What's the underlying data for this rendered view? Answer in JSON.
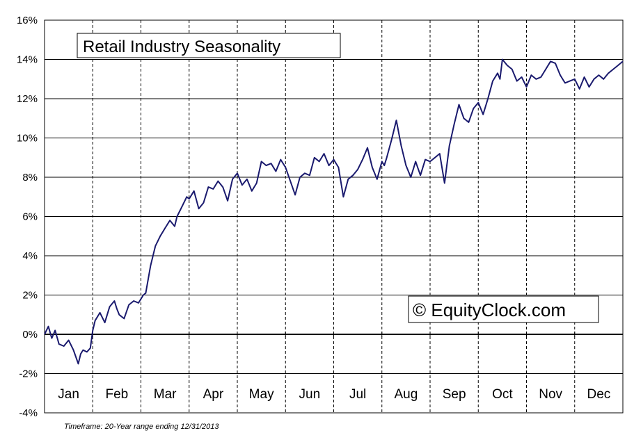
{
  "chart_data": {
    "type": "line",
    "title": "Retail Industry Seasonality",
    "watermark": "© EquityClock.com",
    "footnote": "Timeframe: 20-Year range ending 12/31/2013",
    "ylim": [
      -4,
      16
    ],
    "yticks": [
      "16%",
      "14%",
      "12%",
      "10%",
      "8%",
      "6%",
      "4%",
      "2%",
      "0%",
      "-2%",
      "-4%"
    ],
    "months": [
      "Jan",
      "Feb",
      "Mar",
      "Apr",
      "May",
      "Jun",
      "Jul",
      "Aug",
      "Sep",
      "Oct",
      "Nov",
      "Dec"
    ],
    "grid": true,
    "line_color": "#1a1a6e",
    "series": [
      {
        "x": [
          0,
          0.08,
          0.15,
          0.22,
          0.3,
          0.4,
          0.5,
          0.6,
          0.7,
          0.75,
          0.8,
          0.88,
          0.95,
          1.0,
          1.05,
          1.15,
          1.25,
          1.35,
          1.45,
          1.5,
          1.55,
          1.65,
          1.75,
          1.85,
          1.95,
          2.05,
          2.1,
          2.2,
          2.3,
          2.4,
          2.5,
          2.6,
          2.7,
          2.75,
          2.85,
          2.95,
          3.0,
          3.1,
          3.2,
          3.3,
          3.4,
          3.5,
          3.6,
          3.7,
          3.8,
          3.9,
          4.0,
          4.1,
          4.2,
          4.3,
          4.4,
          4.5,
          4.6,
          4.7,
          4.8,
          4.9,
          5.0,
          5.1,
          5.2,
          5.3,
          5.4,
          5.5,
          5.6,
          5.7,
          5.8,
          5.9,
          6.0,
          6.1,
          6.2,
          6.3,
          6.4,
          6.5,
          6.6,
          6.7,
          6.8,
          6.9,
          7.0,
          7.05,
          7.1,
          7.2,
          7.3,
          7.4,
          7.5,
          7.6,
          7.7,
          7.8,
          7.9,
          8.0,
          8.1,
          8.2,
          8.3,
          8.4,
          8.5,
          8.6,
          8.7,
          8.8,
          8.9,
          9.0,
          9.1,
          9.2,
          9.3,
          9.4,
          9.45,
          9.5,
          9.6,
          9.7,
          9.8,
          9.9,
          10.0,
          10.1,
          10.2,
          10.3,
          10.4,
          10.5,
          10.6,
          10.7,
          10.8,
          10.9,
          11.0,
          11.1,
          11.2,
          11.3,
          11.4,
          11.5,
          11.6,
          11.7,
          11.8,
          11.9,
          12.0
        ],
        "y": [
          0.0,
          0.4,
          -0.2,
          0.2,
          -0.5,
          -0.6,
          -0.3,
          -0.8,
          -1.5,
          -1.0,
          -0.8,
          -0.9,
          -0.7,
          0.2,
          0.7,
          1.1,
          0.6,
          1.4,
          1.7,
          1.3,
          1.0,
          0.8,
          1.5,
          1.7,
          1.6,
          2.0,
          2.1,
          3.5,
          4.5,
          5.0,
          5.4,
          5.8,
          5.5,
          6.0,
          6.5,
          7.0,
          6.9,
          7.3,
          6.4,
          6.7,
          7.5,
          7.4,
          7.8,
          7.5,
          6.8,
          7.9,
          8.2,
          7.6,
          7.9,
          7.3,
          7.7,
          8.8,
          8.6,
          8.7,
          8.3,
          8.9,
          8.5,
          7.8,
          7.1,
          8.0,
          8.2,
          8.1,
          9.0,
          8.8,
          9.2,
          8.6,
          8.9,
          8.5,
          7.0,
          7.9,
          8.1,
          8.4,
          8.9,
          9.5,
          8.5,
          7.9,
          8.8,
          8.6,
          9.0,
          9.9,
          10.9,
          9.6,
          8.6,
          8.0,
          8.8,
          8.1,
          8.9,
          8.8,
          9.0,
          9.2,
          7.7,
          9.6,
          10.7,
          11.7,
          11.0,
          10.8,
          11.5,
          11.8,
          11.2,
          12.0,
          12.9,
          13.3,
          13.0,
          14.0,
          13.7,
          13.5,
          12.9,
          13.1,
          12.6,
          13.2,
          13.0,
          13.1,
          13.5,
          13.9,
          13.8,
          13.2,
          12.8,
          12.9,
          13.0,
          12.5,
          13.1,
          12.6,
          13.0,
          13.2,
          13.0,
          13.3,
          13.5,
          13.7,
          13.9
        ]
      }
    ]
  }
}
